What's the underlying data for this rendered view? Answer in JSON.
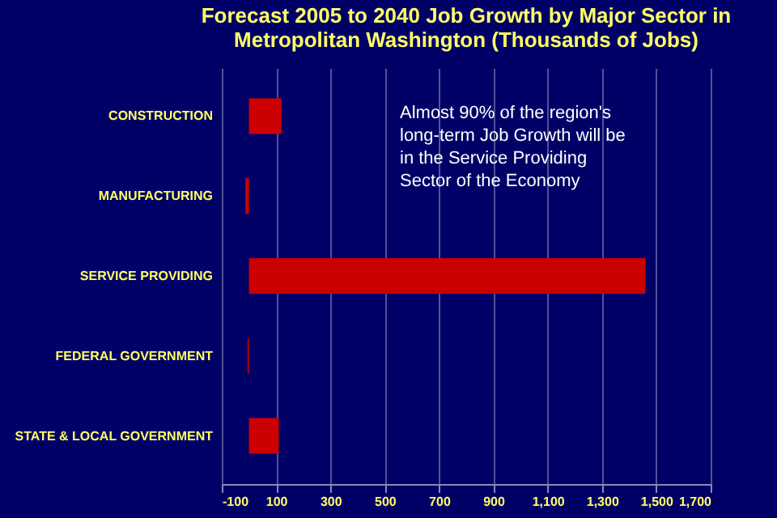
{
  "chart_data": {
    "type": "bar",
    "orientation": "horizontal",
    "title": [
      "Forecast 2005 to 2040 Job Growth by Major Sector in",
      "Metropolitan Washington  (Thousands of Jobs)"
    ],
    "categories": [
      "CONSTRUCTION",
      "MANUFACTURING",
      "SERVICE PROVIDING",
      "FEDERAL GOVERNMENT",
      "STATE & LOCAL GOVERNMENT"
    ],
    "values": [
      120,
      -13,
      1460,
      -5,
      110
    ],
    "color": "#cc0000",
    "xlim": [
      -100,
      1700
    ],
    "xticks": [
      {
        "value": -100,
        "label": "-100"
      },
      {
        "value": 100,
        "label": "100"
      },
      {
        "value": 300,
        "label": "300"
      },
      {
        "value": 500,
        "label": "500"
      },
      {
        "value": 700,
        "label": "700"
      },
      {
        "value": 900,
        "label": "900"
      },
      {
        "value": 1100,
        "label": "1,100"
      },
      {
        "value": 1300,
        "label": "1,300"
      },
      {
        "value": 1500,
        "label": "1,500"
      },
      {
        "value": 1700,
        "label": "1,700"
      }
    ],
    "grid": "x",
    "annotations": [
      "Almost 90% of the region's long-term Job Growth will be in the Service Providing Sector of the Economy"
    ]
  }
}
